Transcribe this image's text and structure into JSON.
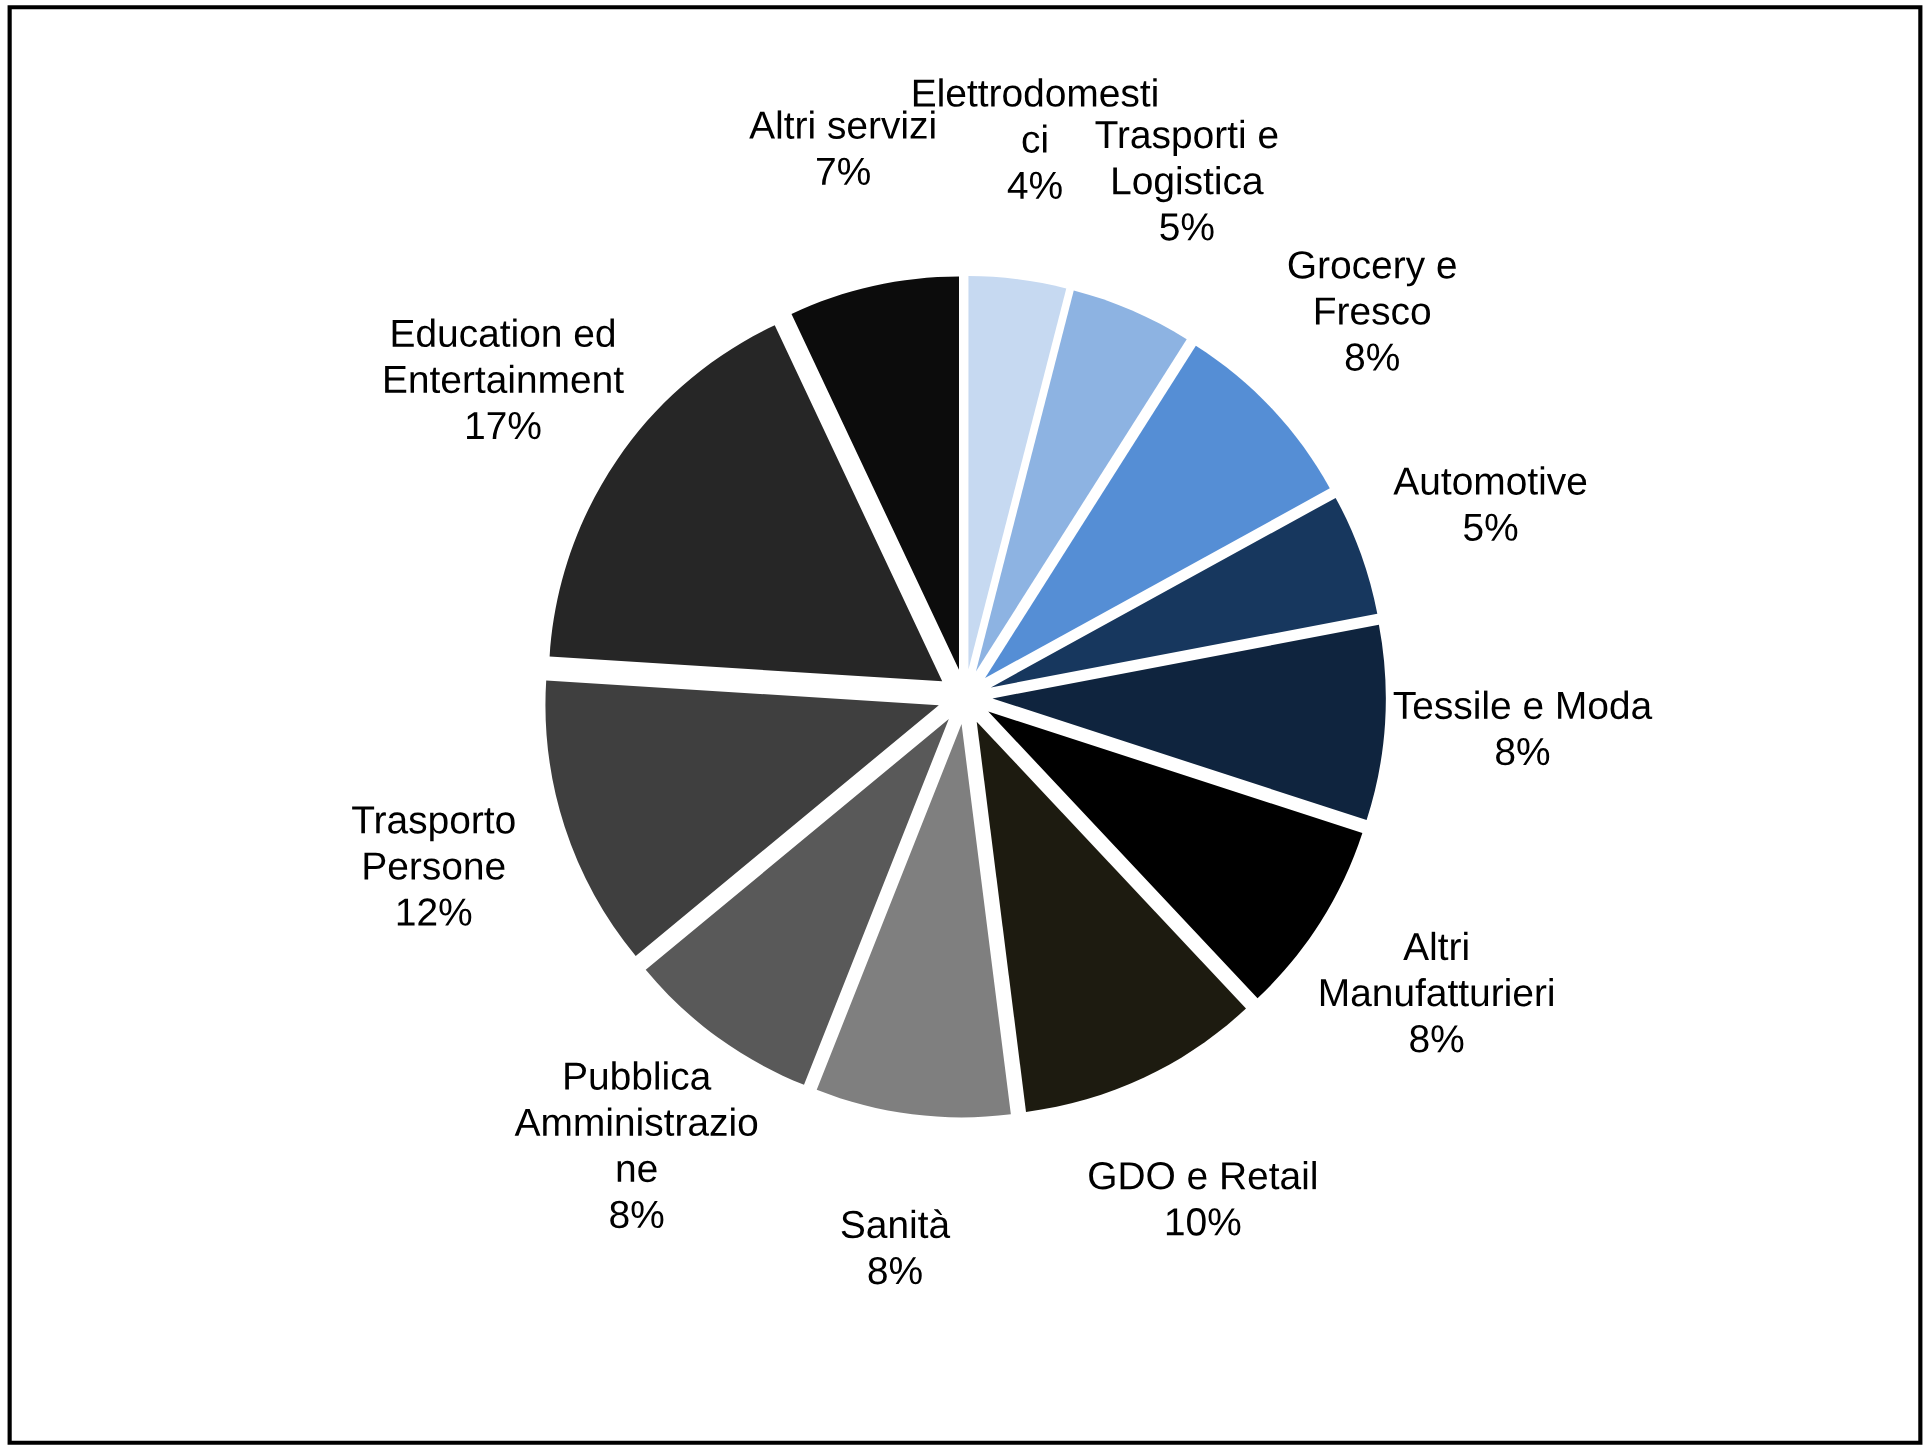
{
  "chart_data": {
    "type": "pie",
    "categories": [
      "Elettrodomesti\nci",
      "Trasporti e\nLogistica",
      "Grocery e\nFresco",
      "Automotive",
      "Tessile e Moda",
      "Altri\nManufatturieri",
      "GDO e Retail",
      "Sanità",
      "Pubblica\nAmministrazio\nne",
      "Trasporto\nPersone",
      "Education ed\nEntertainment",
      "Altri servizi"
    ],
    "values": [
      4,
      5,
      8,
      5,
      8,
      8,
      10,
      8,
      8,
      12,
      17,
      7
    ],
    "value_labels": [
      "4%",
      "5%",
      "8%",
      "5%",
      "8%",
      "8%",
      "10%",
      "8%",
      "8%",
      "12%",
      "17%",
      "7%"
    ],
    "colors": [
      "#c6d9f1",
      "#8db3e2",
      "#558ed5",
      "#17375e",
      "#0f243e",
      "#000000",
      "#1d1b10",
      "#7f7f7f",
      "#595959",
      "#3f3f3f",
      "#262626",
      "#0c0c0c"
    ],
    "legend": false
  }
}
